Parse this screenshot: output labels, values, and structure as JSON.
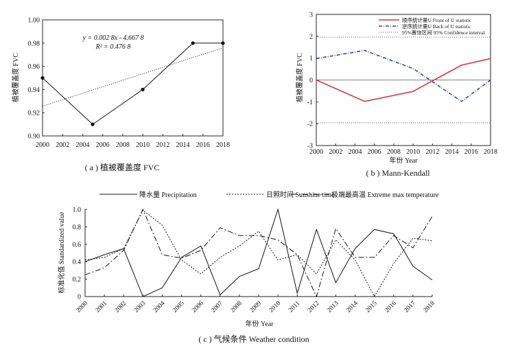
{
  "chart_data": [
    {
      "id": "a",
      "type": "line",
      "caption": "( a ) 植被覆盖度 FVC",
      "ylabel": "植被覆盖度 FVC",
      "xlabel": "",
      "xlim": [
        2000,
        2018
      ],
      "ylim": [
        0.9,
        1.0
      ],
      "xticks": [
        2000,
        2002,
        2004,
        2006,
        2008,
        2010,
        2012,
        2014,
        2016,
        2018
      ],
      "yticks": [
        0.9,
        0.92,
        0.94,
        0.96,
        0.98,
        1.0
      ],
      "ytick_labels": [
        "0.90",
        "0.92",
        "0.94",
        "0.96",
        "0.98",
        "1.00"
      ],
      "series": [
        {
          "name": "FVC",
          "x": [
            2000,
            2005,
            2010,
            2015,
            2018
          ],
          "values": [
            0.95,
            0.91,
            0.94,
            0.98,
            0.98
          ],
          "style": "solid-markers"
        },
        {
          "name": "Trend",
          "x": [
            2000,
            2018
          ],
          "values": [
            0.9256,
            0.976
          ],
          "style": "dotted"
        }
      ],
      "annotations": {
        "equation": "y = 0.002 8x - 4.667 8",
        "r2": "R² = 0.476 8"
      }
    },
    {
      "id": "b",
      "type": "line",
      "caption": "( b ) Mann-Kendall",
      "ylabel": "植被覆盖度 FVC",
      "xlabel": "年份 Year",
      "xlim": [
        2000,
        2018
      ],
      "ylim": [
        -3,
        3
      ],
      "xticks": [
        2000,
        2002,
        2004,
        2006,
        2008,
        2010,
        2012,
        2014,
        2016,
        2018
      ],
      "yticks": [
        -3,
        -2,
        -1,
        0,
        1,
        2,
        3
      ],
      "series": [
        {
          "name": "顺序统计量U  Front of U statistic",
          "x": [
            2000,
            2005,
            2010,
            2015,
            2018
          ],
          "values": [
            0,
            -0.98,
            -0.52,
            0.68,
            0.98
          ],
          "color": "#d9333f",
          "style": "solid"
        },
        {
          "name": "逆序统计量U  Back of U statistic",
          "x": [
            2000,
            2005,
            2010,
            2015,
            2018
          ],
          "values": [
            0.98,
            1.35,
            0.52,
            -0.98,
            0
          ],
          "color": "#2b4aa8",
          "style": "dashdot"
        },
        {
          "name": "95%置信区间  95% Confidence interval",
          "lines": [
            1.96,
            -1.96
          ],
          "color": "#555555",
          "style": "dotted"
        }
      ]
    },
    {
      "id": "c",
      "type": "line",
      "caption": "( c ) 气候条件 Weather condition",
      "ylabel": "标准化值 Standardized value",
      "xlabel": "年份 Year",
      "xlim": [
        2000,
        2018
      ],
      "ylim": [
        0,
        1.0
      ],
      "xticks": [
        2000,
        2001,
        2002,
        2003,
        2004,
        2005,
        2006,
        2007,
        2008,
        2009,
        2010,
        2011,
        2012,
        2013,
        2014,
        2015,
        2016,
        2017,
        2018
      ],
      "yticks": [
        0,
        0.2,
        0.4,
        0.6,
        0.8,
        1.0
      ],
      "ytick_labels": [
        "0",
        "0.2",
        "0.4",
        "0.6",
        "0.8",
        "1.0"
      ],
      "series": [
        {
          "name": "降水量 Precipitation",
          "style": "solid",
          "values": [
            0.4,
            0.48,
            0.55,
            0.0,
            0.1,
            0.45,
            0.58,
            0.02,
            0.23,
            0.32,
            1.0,
            0.04,
            0.77,
            0.16,
            0.55,
            0.77,
            0.72,
            0.35,
            0.19
          ]
        },
        {
          "name": "日照时间 Sunshine time",
          "style": "dashed",
          "values": [
            0.42,
            0.45,
            0.55,
            0.99,
            0.82,
            0.42,
            0.26,
            0.45,
            0.58,
            0.75,
            0.42,
            0.48,
            0.26,
            0.65,
            0.42,
            0.0,
            0.38,
            0.67,
            0.64
          ]
        },
        {
          "name": "极端最高温 Extreme max temperature",
          "style": "dashdot",
          "values": [
            0.25,
            0.33,
            0.53,
            1.0,
            0.48,
            0.44,
            0.53,
            0.79,
            0.7,
            0.7,
            0.65,
            0.48,
            0.0,
            0.78,
            0.45,
            0.45,
            0.7,
            0.56,
            0.92
          ]
        }
      ]
    }
  ]
}
